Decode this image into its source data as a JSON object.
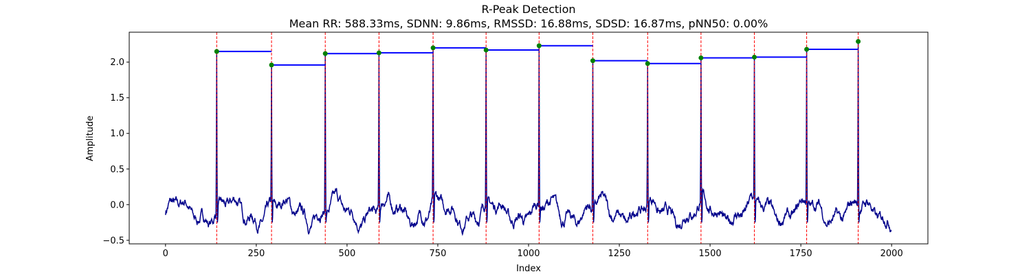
{
  "chart_data": {
    "type": "line",
    "title": "R-Peak Detection",
    "subtitle": "Mean RR: 588.33ms, SDNN: 9.86ms, RMSSD: 16.88ms, SDSD: 16.87ms, pNN50: 0.00%",
    "xlabel": "Index",
    "ylabel": "Amplitude",
    "xlim": [
      -100,
      2100
    ],
    "ylim": [
      -0.55,
      2.42
    ],
    "xticks": [
      0,
      250,
      500,
      750,
      1000,
      1250,
      1500,
      1750,
      2000
    ],
    "yticks": [
      -0.5,
      0.0,
      0.5,
      1.0,
      1.5,
      2.0
    ],
    "grid": false,
    "colors": {
      "signal": "#00008b",
      "peak_lines": "#ff0000",
      "peak_markers": "#008000",
      "rr_segments": "#0000ff"
    },
    "signal_length": 2000,
    "r_peaks": {
      "x": [
        141,
        292,
        440,
        588,
        737,
        883,
        1029,
        1177,
        1328,
        1475,
        1622,
        1766,
        1908
      ],
      "y": [
        2.15,
        1.96,
        2.12,
        2.13,
        2.2,
        2.17,
        2.23,
        2.02,
        1.98,
        2.06,
        2.07,
        2.18,
        2.29
      ]
    },
    "rr_segments": [
      {
        "x0": 141,
        "x1": 292,
        "y": 2.15
      },
      {
        "x0": 292,
        "x1": 440,
        "y": 1.96
      },
      {
        "x0": 440,
        "x1": 588,
        "y": 2.12
      },
      {
        "x0": 588,
        "x1": 737,
        "y": 2.13
      },
      {
        "x0": 737,
        "x1": 883,
        "y": 2.2
      },
      {
        "x0": 883,
        "x1": 1029,
        "y": 2.17
      },
      {
        "x0": 1029,
        "x1": 1177,
        "y": 2.23
      },
      {
        "x0": 1177,
        "x1": 1328,
        "y": 2.02
      },
      {
        "x0": 1328,
        "x1": 1475,
        "y": 1.98
      },
      {
        "x0": 1475,
        "x1": 1622,
        "y": 2.06
      },
      {
        "x0": 1622,
        "x1": 1766,
        "y": 2.07
      },
      {
        "x0": 1766,
        "x1": 1908,
        "y": 2.18
      }
    ]
  }
}
